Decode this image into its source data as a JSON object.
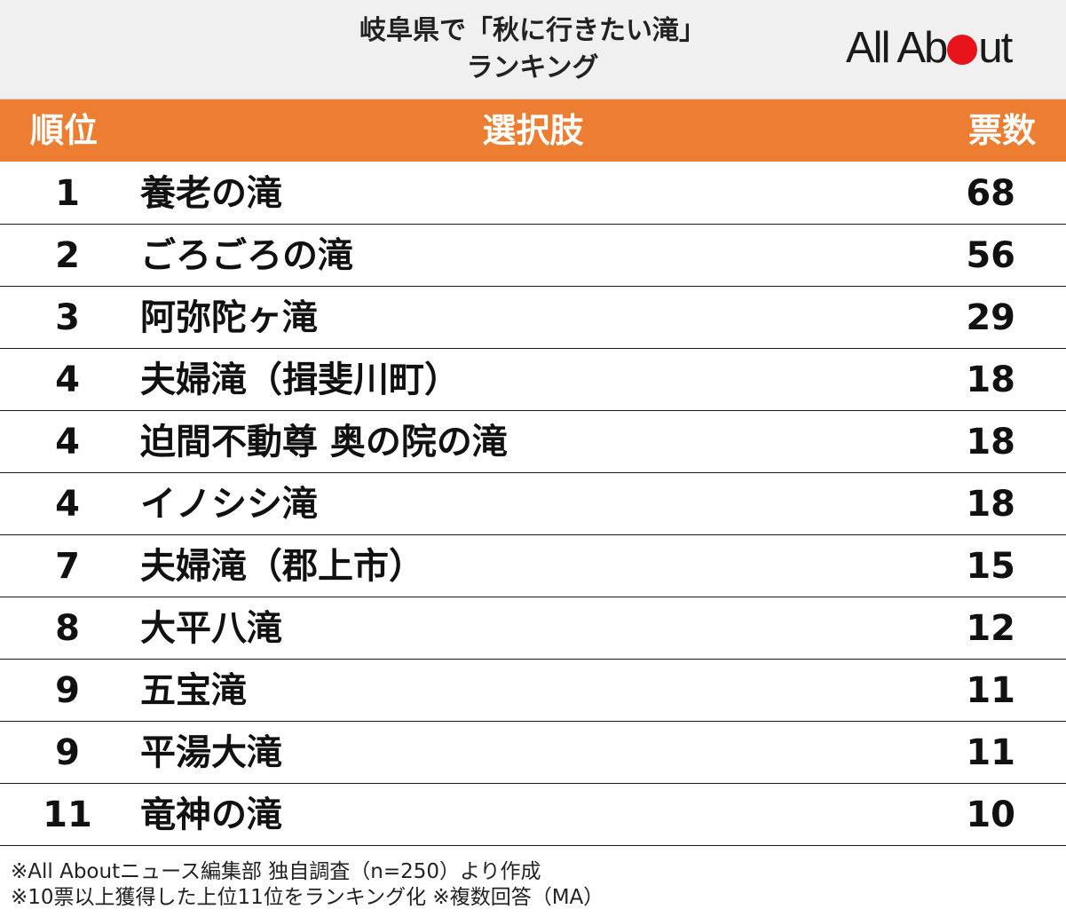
{
  "header": {
    "title_line1": "岐阜県で「秋に行きたい滝」",
    "title_line2": "ランキング",
    "logo_left": "All Ab",
    "logo_right": "ut",
    "logo_dot_color": "#e8141b"
  },
  "colors": {
    "header_band": "#ed7d31",
    "background": "#ffffff"
  },
  "columns": {
    "rank": "順位",
    "option": "選択肢",
    "votes": "票数"
  },
  "chart_data": {
    "type": "table",
    "columns": [
      "順位",
      "選択肢",
      "票数"
    ],
    "rows": [
      {
        "rank": "1",
        "option": "養老の滝",
        "votes": 68
      },
      {
        "rank": "2",
        "option": "ごろごろの滝",
        "votes": 56
      },
      {
        "rank": "3",
        "option": "阿弥陀ヶ滝",
        "votes": 29
      },
      {
        "rank": "4",
        "option": "夫婦滝（揖斐川町）",
        "votes": 18
      },
      {
        "rank": "4",
        "option": "迫間不動尊 奥の院の滝",
        "votes": 18
      },
      {
        "rank": "4",
        "option": "イノシシ滝",
        "votes": 18
      },
      {
        "rank": "7",
        "option": "夫婦滝（郡上市）",
        "votes": 15
      },
      {
        "rank": "8",
        "option": "大平八滝",
        "votes": 12
      },
      {
        "rank": "9",
        "option": "五宝滝",
        "votes": 11
      },
      {
        "rank": "9",
        "option": "平湯大滝",
        "votes": 11
      },
      {
        "rank": "11",
        "option": "竜神の滝",
        "votes": 10
      }
    ]
  },
  "footnotes": [
    "※All Aboutニュース編集部 独自調査（n=250）より作成",
    "※10票以上獲得した上位11位をランキング化 ※複数回答（MA）"
  ]
}
